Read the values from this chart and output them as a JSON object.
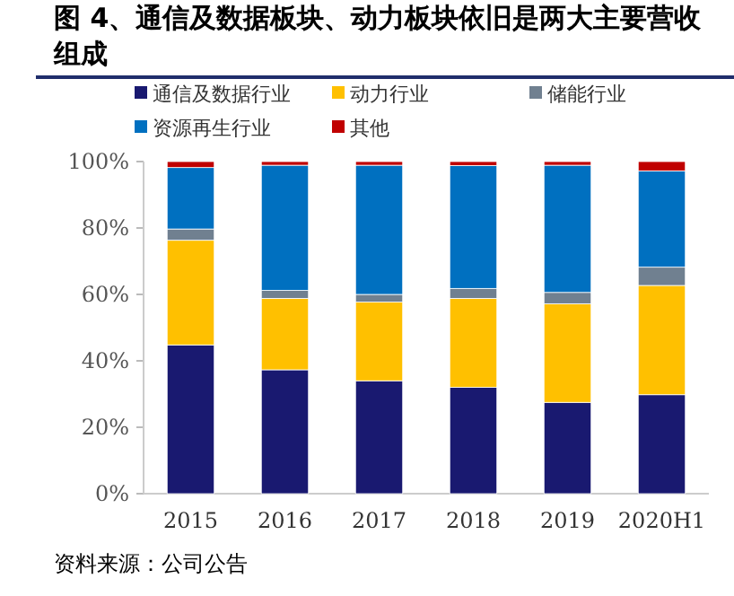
{
  "chart_data": {
    "type": "bar",
    "stacked": true,
    "title": "图 4、通信及数据板块、动力板块依旧是两大主要营收组成",
    "categories": [
      "2015",
      "2016",
      "2017",
      "2018",
      "2019",
      "2020H1"
    ],
    "series": [
      {
        "name": "通信及数据行业",
        "color": "#191970",
        "values": [
          44.8,
          37.3,
          34.0,
          32.0,
          27.5,
          29.8
        ]
      },
      {
        "name": "动力行业",
        "color": "#ffc000",
        "values": [
          31.5,
          21.5,
          23.7,
          26.8,
          29.7,
          32.9
        ]
      },
      {
        "name": "储能行业",
        "color": "#708090",
        "values": [
          3.4,
          2.4,
          2.3,
          3.0,
          3.4,
          5.5
        ]
      },
      {
        "name": "资源再生行业",
        "color": "#0070c0",
        "values": [
          18.5,
          37.7,
          38.9,
          37.0,
          38.3,
          29.0
        ]
      },
      {
        "name": "其他",
        "color": "#c00000",
        "values": [
          1.8,
          1.1,
          1.1,
          1.2,
          1.1,
          2.8
        ]
      }
    ],
    "ylim": [
      0,
      100
    ],
    "yticks": [
      {
        "value": 0,
        "label": "0%"
      },
      {
        "value": 20,
        "label": "20%"
      },
      {
        "value": 40,
        "label": "40%"
      },
      {
        "value": 60,
        "label": "60%"
      },
      {
        "value": 80,
        "label": "80%"
      },
      {
        "value": 100,
        "label": "100%"
      }
    ],
    "legend": "top",
    "grid": false,
    "annotations": [
      "资料来源：公司公告"
    ]
  }
}
